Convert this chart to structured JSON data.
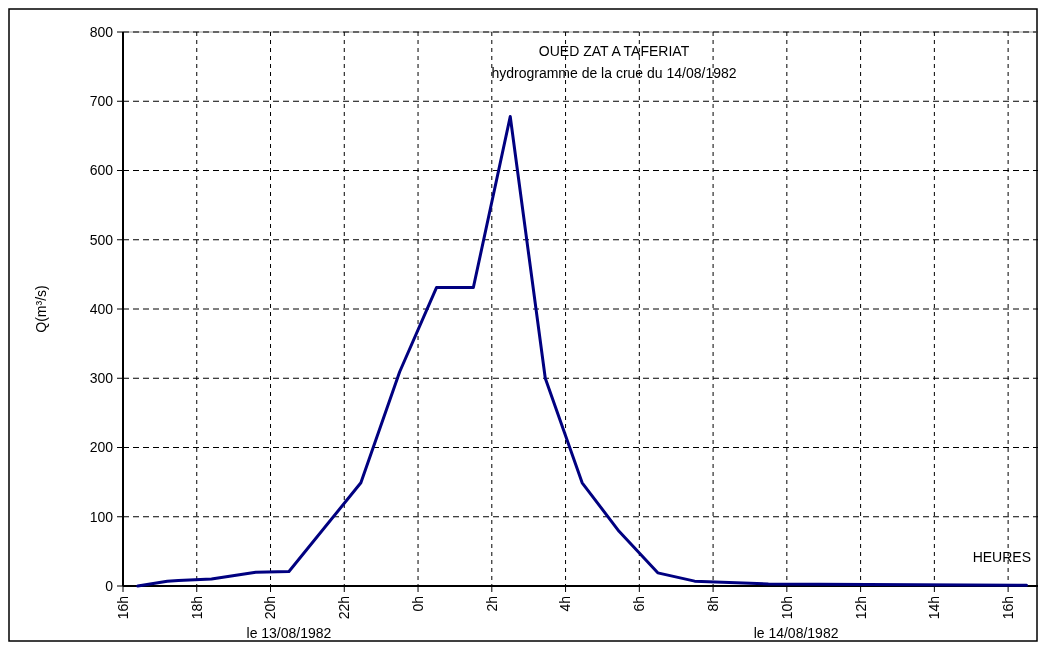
{
  "chart_data": {
    "type": "line",
    "title": "OUED ZAT A TAFERIAT",
    "subtitle": "hydrogramme de la crue du 14/08/1982",
    "xlabel": "HEURES",
    "ylabel": "Q(m³/s)",
    "annotations": [
      "le 13/08/1982",
      "le 14/08/1982"
    ],
    "x": [
      "1982-08-13T16:24",
      "1982-08-13T17:12",
      "1982-08-13T17:30",
      "1982-08-13T18:24",
      "1982-08-13T19:36",
      "1982-08-13T20:30",
      "1982-08-13T22:27",
      "1982-08-13T23:30",
      "1982-08-14T00:30",
      "1982-08-14T01:30",
      "1982-08-14T02:30",
      "1982-08-14T03:27",
      "1982-08-14T04:27",
      "1982-08-14T05:27",
      "1982-08-14T06:30",
      "1982-08-14T07:30",
      "1982-08-14T09:30",
      "1982-08-14T16:30"
    ],
    "series": [
      {
        "color": "#000080",
        "values": [
          0,
          7,
          8,
          10,
          20,
          21,
          149,
          309,
          431,
          431,
          678,
          300,
          149,
          79,
          19,
          7,
          3,
          1
        ]
      }
    ],
    "xlim": [
      "1982-08-13T16:00",
      "1982-08-14T17:00"
    ],
    "xticks": [
      {
        "value": "1982-08-13T16:00",
        "label": "16h"
      },
      {
        "value": "1982-08-13T18:00",
        "label": "18h"
      },
      {
        "value": "1982-08-13T20:00",
        "label": "20h"
      },
      {
        "value": "1982-08-13T22:00",
        "label": "22h"
      },
      {
        "value": "1982-08-14T00:00",
        "label": "0h"
      },
      {
        "value": "1982-08-14T02:00",
        "label": "2h"
      },
      {
        "value": "1982-08-14T04:00",
        "label": "4h"
      },
      {
        "value": "1982-08-14T06:00",
        "label": "6h"
      },
      {
        "value": "1982-08-14T08:00",
        "label": "8h"
      },
      {
        "value": "1982-08-14T10:00",
        "label": "10h"
      },
      {
        "value": "1982-08-14T12:00",
        "label": "12h"
      },
      {
        "value": "1982-08-14T14:00",
        "label": "14h"
      },
      {
        "value": "1982-08-14T16:00",
        "label": "16h"
      }
    ],
    "ylim": [
      0,
      800
    ],
    "yticks": [
      0,
      100,
      200,
      300,
      400,
      500,
      600,
      700,
      800
    ],
    "grid": true,
    "marker": "none",
    "line_style": "solid"
  }
}
